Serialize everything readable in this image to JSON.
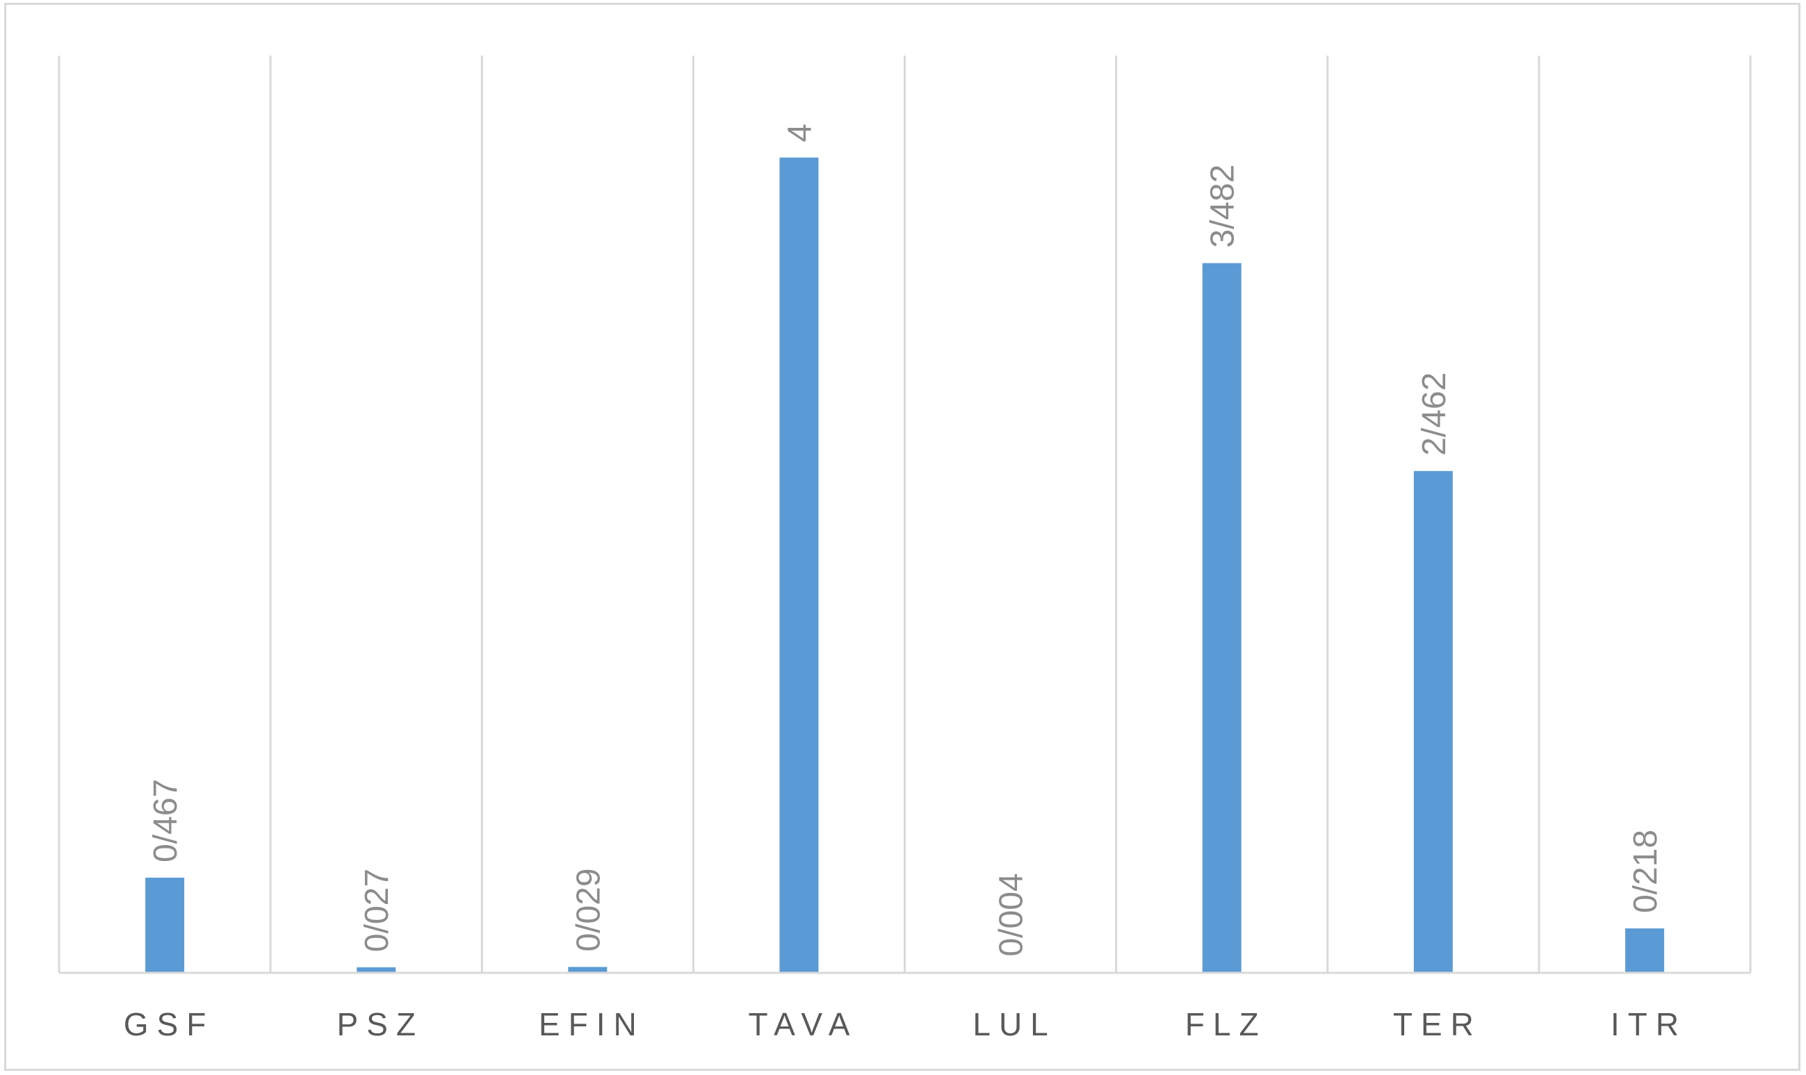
{
  "chart_data": {
    "type": "bar",
    "title": "",
    "xlabel": "",
    "ylabel": "",
    "categories": [
      "GSF",
      "PSZ",
      "EFIN",
      "TAVA",
      "LUL",
      "FLZ",
      "TER",
      "ITR"
    ],
    "values": [
      0.467,
      0.027,
      0.029,
      4,
      0.004,
      3.482,
      2.462,
      0.218
    ],
    "data_labels": [
      "0/467",
      "0/027",
      "0/029",
      "4",
      "0/004",
      "3/482",
      "2/462",
      "0/218"
    ],
    "ylim": [
      0,
      4.5
    ],
    "grid": "vertical",
    "legend": "none",
    "colors": {
      "bar": "#5b9bd5",
      "gridline": "#d9d9d9",
      "axis": "#d9d9d9",
      "data_label": "#8c8c8c",
      "category_label": "#595959",
      "frame": "#d9d9d9"
    }
  }
}
